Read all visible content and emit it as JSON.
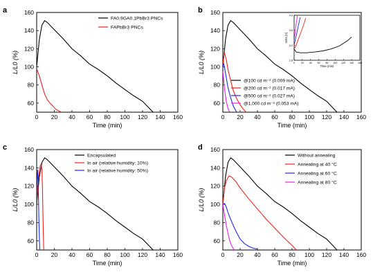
{
  "chart_data": [
    {
      "panel": "a",
      "type": "line",
      "xlabel": "Time (min)",
      "ylabel": "L/L0 (%)",
      "xlim": [
        0,
        160
      ],
      "ylim": [
        50,
        160
      ],
      "xticks": [
        "0",
        "20",
        "40",
        "60",
        "80",
        "100",
        "120",
        "140",
        "160"
      ],
      "yticks": [
        "60",
        "80",
        "100",
        "120",
        "140",
        "160"
      ],
      "legend": "top-right",
      "series": [
        {
          "name": "FA0.9GA0.1PbBr3 PNCs",
          "color": "#000000",
          "x": [
            0,
            3,
            6,
            9,
            12,
            20,
            30,
            40,
            50,
            60,
            70,
            80,
            90,
            100,
            110,
            120,
            127,
            132
          ],
          "y": [
            100,
            130,
            146,
            151,
            149,
            141,
            131,
            120,
            112,
            103,
            97,
            90,
            82,
            75,
            68,
            62,
            55,
            50
          ]
        },
        {
          "name": "FAPbBr3 PNCs",
          "color": "#e8211b",
          "x": [
            0,
            3,
            6,
            9,
            12,
            15,
            18,
            22,
            26,
            28
          ],
          "y": [
            98,
            90,
            80,
            70,
            64,
            60,
            57,
            53,
            51,
            50
          ]
        }
      ]
    },
    {
      "panel": "b",
      "type": "line",
      "xlabel": "Time (min)",
      "ylabel": "L/L0 (%)",
      "xlim": [
        0,
        160
      ],
      "ylim": [
        50,
        160
      ],
      "xticks": [
        "0",
        "20",
        "40",
        "60",
        "80",
        "100",
        "120",
        "140",
        "160"
      ],
      "yticks": [
        "60",
        "80",
        "100",
        "120",
        "140",
        "160"
      ],
      "legend": "bottom-right",
      "series": [
        {
          "name": "@100 cd m⁻² (0.009 mA)",
          "color": "#000000",
          "x": [
            0,
            3,
            6,
            9,
            12,
            20,
            30,
            40,
            50,
            60,
            70,
            80,
            90,
            100,
            110,
            120,
            127,
            132
          ],
          "y": [
            100,
            130,
            146,
            151,
            149,
            141,
            131,
            120,
            112,
            103,
            97,
            90,
            82,
            75,
            68,
            62,
            55,
            50
          ]
        },
        {
          "name": "@200 cd m⁻² (0.017 mA)",
          "color": "#e8211b",
          "x": [
            0,
            1,
            2,
            4,
            6,
            9,
            12,
            16,
            20,
            24,
            27
          ],
          "y": [
            100,
            112,
            115,
            108,
            97,
            85,
            74,
            65,
            58,
            53,
            50
          ]
        },
        {
          "name": "@500 cd m⁻² (0.027 mA)",
          "color": "#1d28e8",
          "x": [
            0,
            1,
            2,
            4,
            6,
            9,
            12,
            16
          ],
          "y": [
            100,
            104,
            99,
            88,
            77,
            66,
            57,
            50
          ]
        },
        {
          "name": "@1,000 cd m⁻² (0.053 mA)",
          "color": "#e81ee8",
          "x": [
            0,
            1,
            2,
            4,
            6,
            8
          ],
          "y": [
            95,
            85,
            75,
            62,
            54,
            50
          ]
        }
      ],
      "inset": {
        "xlabel": "Time (min)",
        "ylabel": "Volts (V)",
        "xlim": [
          0,
          160
        ],
        "ylim": [
          2.8,
          4.0
        ],
        "xticks": [
          "0",
          "20",
          "40",
          "60",
          "80",
          "100",
          "120",
          "140",
          "160"
        ],
        "yticks": [
          "2.8",
          "3.2",
          "3.6",
          "4.0"
        ],
        "series": [
          {
            "color": "#000000",
            "x": [
              0,
              5,
              15,
              30,
              50,
              70,
              90,
              110,
              130,
              140
            ],
            "y": [
              3.1,
              3.02,
              3.0,
              3.0,
              3.02,
              3.05,
              3.1,
              3.18,
              3.32,
              3.42
            ]
          },
          {
            "color": "#e8211b",
            "x": [
              0,
              5,
              10,
              15,
              20,
              25,
              28
            ],
            "y": [
              3.1,
              3.2,
              3.35,
              3.5,
              3.65,
              3.8,
              3.92
            ]
          },
          {
            "color": "#1d28e8",
            "x": [
              0,
              3,
              6,
              9,
              12,
              15
            ],
            "y": [
              3.2,
              3.35,
              3.5,
              3.65,
              3.8,
              3.95
            ]
          },
          {
            "color": "#e81ee8",
            "x": [
              0,
              2,
              4,
              6,
              8
            ],
            "y": [
              3.3,
              3.5,
              3.7,
              3.85,
              4.0
            ]
          }
        ]
      }
    },
    {
      "panel": "c",
      "type": "line",
      "xlabel": "Time (min)",
      "ylabel": "L/L0 (%)",
      "xlim": [
        0,
        160
      ],
      "ylim": [
        50,
        160
      ],
      "xticks": [
        "0",
        "20",
        "40",
        "60",
        "80",
        "100",
        "120",
        "140",
        "160"
      ],
      "yticks": [
        "60",
        "80",
        "100",
        "120",
        "140",
        "160"
      ],
      "legend": "top-right",
      "series": [
        {
          "name": "Encapsulated",
          "color": "#000000",
          "x": [
            0,
            3,
            6,
            9,
            12,
            20,
            30,
            40,
            50,
            60,
            70,
            80,
            90,
            100,
            110,
            120,
            127,
            132
          ],
          "y": [
            100,
            130,
            146,
            151,
            149,
            141,
            131,
            120,
            112,
            103,
            97,
            90,
            82,
            75,
            68,
            62,
            55,
            50
          ]
        },
        {
          "name": "In air (relative humidity: 10%)",
          "color": "#e8211b",
          "x": [
            0,
            1,
            2,
            3,
            4,
            5,
            6,
            6.5,
            7,
            7.5,
            8
          ],
          "y": [
            100,
            115,
            128,
            137,
            142,
            144,
            138,
            120,
            95,
            70,
            50
          ]
        },
        {
          "name": "In air (relative humidity: 50%)",
          "color": "#1d28e8",
          "x": [
            0,
            0.5,
            1,
            1.5,
            2,
            2.5,
            3,
            3.5
          ],
          "y": [
            100,
            125,
            138,
            130,
            110,
            85,
            65,
            50
          ]
        }
      ]
    },
    {
      "panel": "d",
      "type": "line",
      "xlabel": "Time (min)",
      "ylabel": "L/L0 (%)",
      "xlim": [
        0,
        160
      ],
      "ylim": [
        50,
        160
      ],
      "xticks": [
        "0",
        "20",
        "40",
        "60",
        "80",
        "100",
        "120",
        "140",
        "160"
      ],
      "yticks": [
        "60",
        "80",
        "100",
        "120",
        "140",
        "160"
      ],
      "legend": "top-right",
      "series": [
        {
          "name": "Without annealing",
          "color": "#000000",
          "x": [
            0,
            3,
            6,
            9,
            12,
            20,
            30,
            40,
            50,
            60,
            70,
            80,
            90,
            100,
            110,
            120,
            127,
            132
          ],
          "y": [
            100,
            130,
            146,
            151,
            149,
            141,
            131,
            120,
            112,
            103,
            97,
            90,
            82,
            75,
            68,
            62,
            55,
            50
          ]
        },
        {
          "name": "Annealing at 40 °C",
          "color": "#e8211b",
          "x": [
            0,
            2,
            4,
            7,
            10,
            15,
            20,
            30,
            40,
            50,
            60,
            70,
            80,
            85
          ],
          "y": [
            100,
            118,
            126,
            131,
            130,
            125,
            118,
            106,
            95,
            84,
            74,
            64,
            55,
            50
          ]
        },
        {
          "name": "Annealing at 60 °C",
          "color": "#1d28e8",
          "x": [
            0,
            2,
            4,
            6,
            8,
            12,
            16,
            20,
            25,
            30,
            35,
            40
          ],
          "y": [
            100,
            101,
            97,
            91,
            86,
            77,
            69,
            62,
            57,
            54,
            52,
            51
          ]
        },
        {
          "name": "Annealing at 80 °C",
          "color": "#e81ee8",
          "x": [
            0,
            2,
            4,
            6,
            8,
            10,
            13
          ],
          "y": [
            100,
            88,
            77,
            68,
            60,
            55,
            50
          ]
        }
      ]
    }
  ]
}
